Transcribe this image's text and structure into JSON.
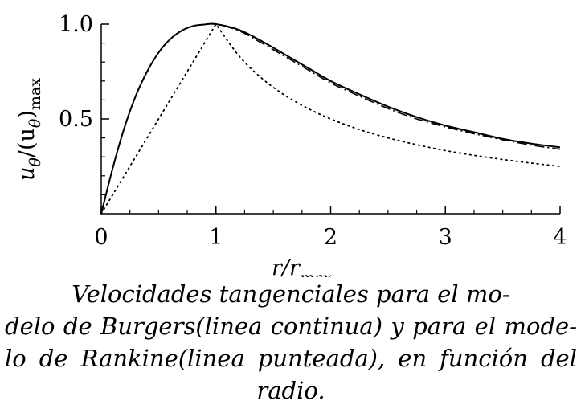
{
  "chart_data": {
    "type": "line",
    "xlabel": "r/r",
    "xlabel_sub": "max",
    "ylabel": "u",
    "ylabel_theta": "θ",
    "ylabel_rest": "/(u",
    "ylabel_theta2": "θ",
    "ylabel_close": ")",
    "ylabel_sub": "max",
    "xlim": [
      0,
      4
    ],
    "ylim": [
      0,
      1.0
    ],
    "x_ticks": [
      {
        "value": 0,
        "label": "0"
      },
      {
        "value": 1,
        "label": "1"
      },
      {
        "value": 2,
        "label": "2"
      },
      {
        "value": 3,
        "label": "3"
      },
      {
        "value": 4,
        "label": "4"
      }
    ],
    "y_ticks": [
      {
        "value": 0.5,
        "label": "0.5"
      },
      {
        "value": 1.0,
        "label": "1.0"
      }
    ],
    "grid": false,
    "series": [
      {
        "style": "solid",
        "x": [
          0.0,
          0.1,
          0.2,
          0.3,
          0.4,
          0.5,
          0.6,
          0.7,
          0.8,
          0.9,
          1.0,
          1.2,
          1.4,
          1.6,
          1.8,
          2.0,
          2.25,
          2.5,
          2.75,
          3.0,
          3.25,
          3.5,
          3.75,
          4.0
        ],
        "y": [
          0.0,
          0.24,
          0.45,
          0.62,
          0.75,
          0.85,
          0.92,
          0.965,
          0.99,
          0.998,
          1.0,
          0.97,
          0.91,
          0.84,
          0.77,
          0.7,
          0.63,
          0.565,
          0.51,
          0.465,
          0.43,
          0.395,
          0.37,
          0.35
        ]
      },
      {
        "style": "dashdot",
        "x": [
          0.0,
          0.1,
          0.2,
          0.3,
          0.4,
          0.5,
          0.6,
          0.7,
          0.8,
          0.9,
          1.0,
          1.2,
          1.4,
          1.6,
          1.8,
          2.0,
          2.25,
          2.5,
          2.75,
          3.0,
          3.25,
          3.5,
          3.75,
          4.0
        ],
        "y": [
          0.0,
          0.24,
          0.45,
          0.62,
          0.75,
          0.85,
          0.92,
          0.965,
          0.99,
          0.998,
          1.0,
          0.965,
          0.9,
          0.83,
          0.76,
          0.69,
          0.62,
          0.555,
          0.5,
          0.458,
          0.422,
          0.39,
          0.362,
          0.34
        ]
      },
      {
        "style": "dotted",
        "x": [
          0.0,
          1.0,
          1.2,
          1.4,
          1.6,
          1.8,
          2.0,
          2.25,
          2.5,
          2.75,
          3.0,
          3.25,
          3.5,
          3.75,
          4.0
        ],
        "y": [
          0.0,
          1.0,
          0.833,
          0.714,
          0.625,
          0.556,
          0.5,
          0.444,
          0.4,
          0.364,
          0.333,
          0.308,
          0.286,
          0.267,
          0.25
        ]
      }
    ]
  },
  "caption": {
    "line1": "Velocidades tangenciales para el mo-",
    "line2": "delo de Burgers(linea continua) y para el mode-",
    "line3": "lo de Rankine(linea punteada), en función del",
    "line4": "radio."
  }
}
